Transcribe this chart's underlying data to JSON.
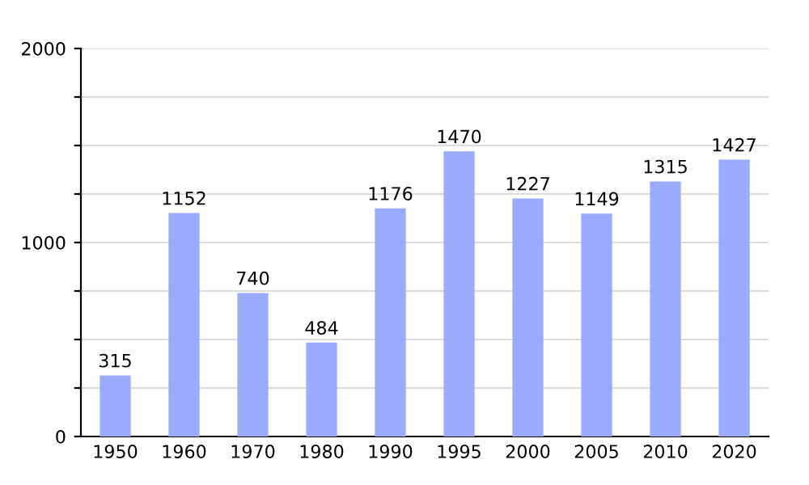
{
  "chart_data": {
    "type": "bar",
    "categories": [
      "1950",
      "1960",
      "1970",
      "1980",
      "1990",
      "1995",
      "2000",
      "2005",
      "2010",
      "2020"
    ],
    "values": [
      315,
      1152,
      740,
      484,
      1176,
      1470,
      1227,
      1149,
      1315,
      1427
    ],
    "color": "#99aaff",
    "data_labels": true,
    "grid": "y",
    "ylim": [
      0,
      2000
    ],
    "yticks": [
      0,
      {
        "value": 250,
        "label": null
      },
      {
        "value": 500,
        "label": null
      },
      {
        "value": 750,
        "label": null
      },
      1000,
      {
        "value": 1250,
        "label": null
      },
      {
        "value": 1500,
        "label": null
      },
      {
        "value": 1750,
        "label": null
      },
      2000
    ]
  }
}
